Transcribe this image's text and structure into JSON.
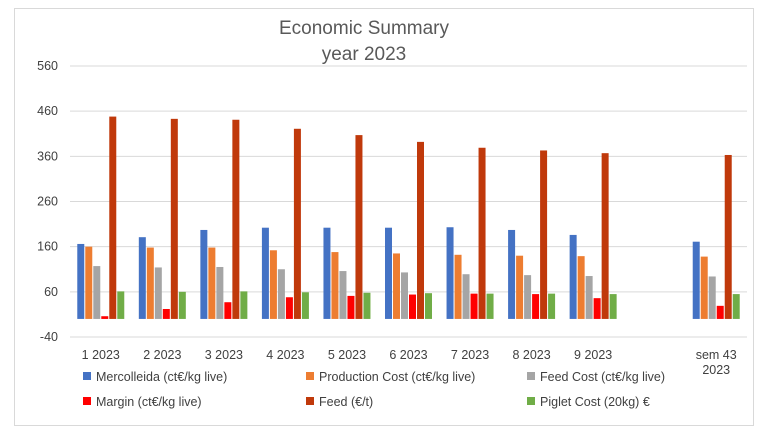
{
  "chart_data": {
    "type": "bar",
    "title": "Economic Summary",
    "subtitle": "year 2023",
    "xlabel": "",
    "ylabel": "",
    "ylim": [
      -40,
      560
    ],
    "yticks": [
      -40,
      60,
      160,
      260,
      360,
      460,
      560
    ],
    "grid": true,
    "legend_position": "bottom",
    "categories": [
      "1 2023",
      "2 2023",
      "3 2023",
      "4 2023",
      "5 2023",
      "6 2023",
      "7 2023",
      "8 2023",
      "9 2023",
      "",
      "sem 43 2023"
    ],
    "series": [
      {
        "name": "Mercolleida (ct€/kg live)",
        "color": "#4472c4",
        "values": [
          166,
          181,
          197,
          202,
          202,
          202,
          203,
          197,
          186,
          null,
          171
        ]
      },
      {
        "name": "Production Cost (ct€/kg live)",
        "color": "#ed7d31",
        "values": [
          160,
          158,
          158,
          152,
          148,
          145,
          142,
          140,
          139,
          null,
          138
        ]
      },
      {
        "name": "Feed Cost (ct€/kg live)",
        "color": "#a5a5a5",
        "values": [
          117,
          114,
          115,
          110,
          106,
          103,
          99,
          97,
          95,
          null,
          94
        ]
      },
      {
        "name": "Margin (ct€/kg live)",
        "color": "#ff0000",
        "values": [
          6,
          22,
          37,
          48,
          51,
          54,
          56,
          55,
          46,
          null,
          29
        ]
      },
      {
        "name": "Feed (€/t)",
        "color": "#c0390b",
        "values": [
          448,
          443,
          441,
          421,
          407,
          392,
          379,
          373,
          367,
          null,
          363
        ]
      },
      {
        "name": "Piglet Cost (20kg) €",
        "color": "#70ad47",
        "values": [
          61,
          60,
          61,
          59,
          58,
          57,
          56,
          56,
          55,
          null,
          55
        ]
      }
    ]
  }
}
